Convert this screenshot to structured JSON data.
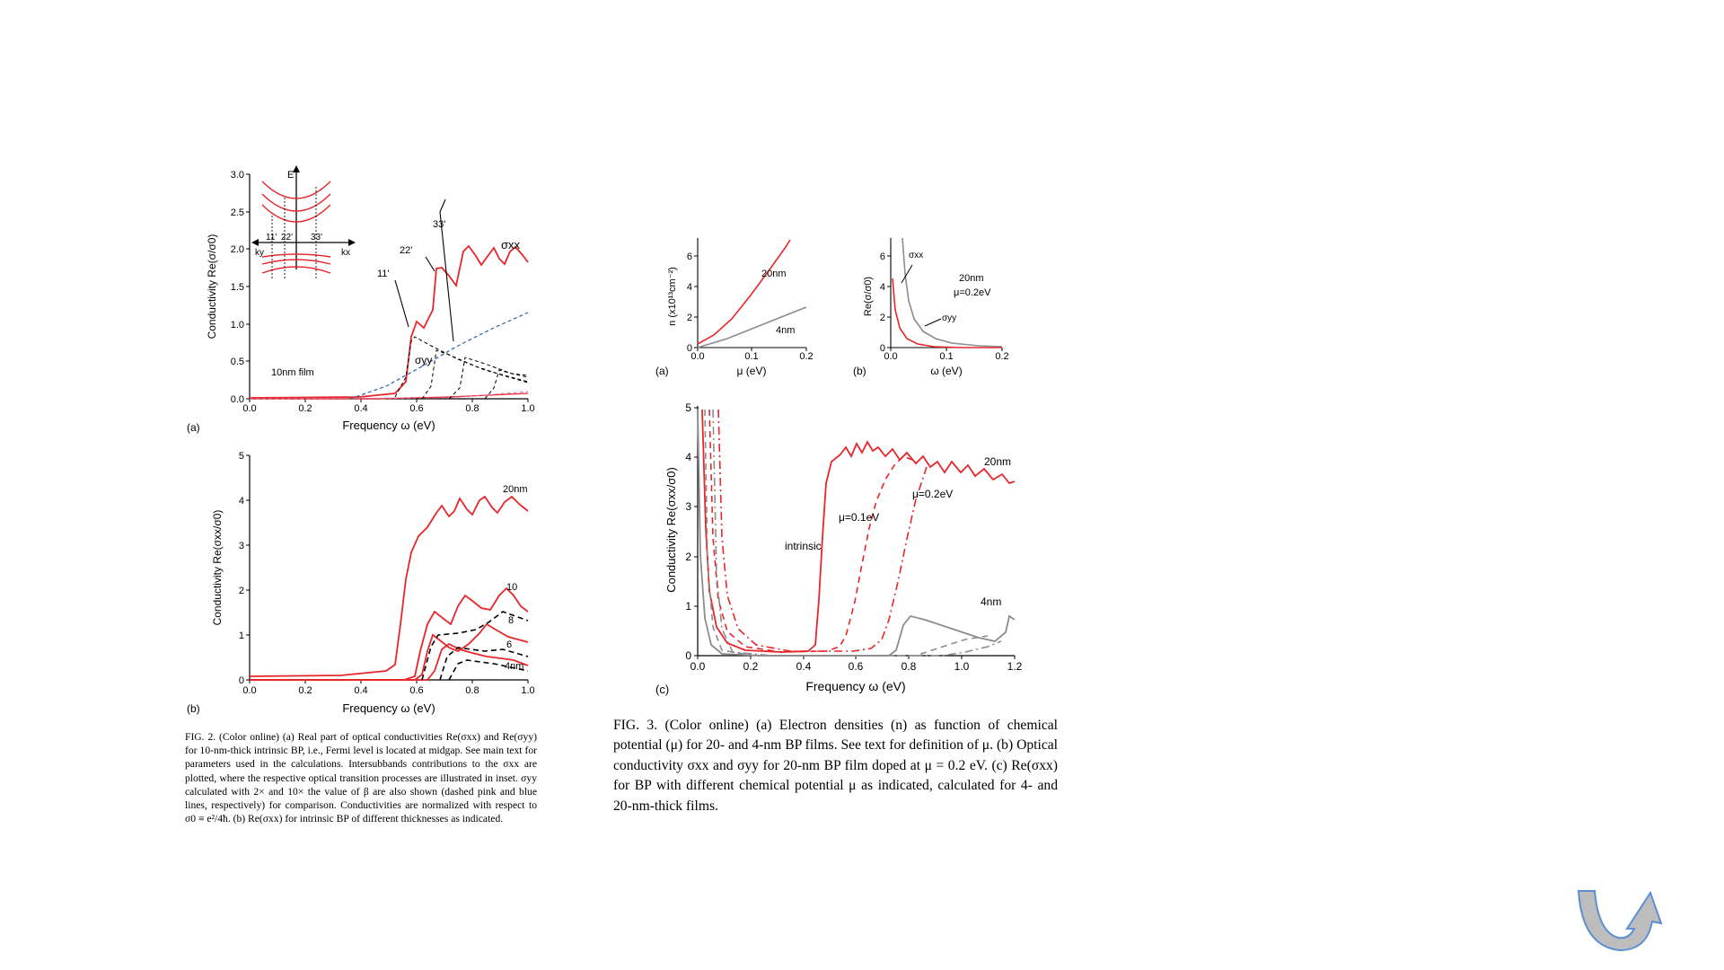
{
  "fig2": {
    "a": {
      "panel": "(a)",
      "ylabel": "Conductivity Re(σ/σ0)",
      "xlabel": "Frequency ω (eV)",
      "xticks": [
        "0.0",
        "0.2",
        "0.4",
        "0.6",
        "0.8",
        "1.0"
      ],
      "yticks": [
        "0.0",
        "0.5",
        "1.0",
        "1.5",
        "2.0",
        "2.5",
        "3.0"
      ],
      "film_label": "10nm film",
      "sigma_xx": "σxx",
      "sigma_yy": "σyy",
      "transitions": [
        "11'",
        "22'",
        "33'"
      ],
      "inset": {
        "E": "E",
        "ky": "ky",
        "kx": "kx",
        "labels": [
          "11'",
          "22'",
          "33'"
        ]
      }
    },
    "b": {
      "panel": "(b)",
      "ylabel": "Conductivity Re(σxx/σ0)",
      "xlabel": "Frequency ω (eV)",
      "xticks": [
        "0.0",
        "0.2",
        "0.4",
        "0.6",
        "0.8",
        "1.0"
      ],
      "yticks": [
        "0",
        "1",
        "2",
        "3",
        "4",
        "5"
      ],
      "labels": [
        "20nm",
        "10",
        "8",
        "6",
        "4nm"
      ]
    },
    "caption": "FIG. 2. (Color online) (a) Real part of optical conductivities Re(σxx) and Re(σyy) for 10-nm-thick intrinsic BP, i.e., Fermi level is located at midgap. See main text for parameters used in the calculations. Intersubbands contributions to the σxx are plotted, where the respective optical transition processes are illustrated in inset. σyy calculated with 2× and 10× the value of β are also shown (dashed pink and blue lines, respectively) for comparison. Conductivities are normalized with respect to σ0 ≡ e²/4ħ. (b) Re(σxx) for intrinsic BP of different thicknesses as indicated."
  },
  "fig3": {
    "a": {
      "panel": "(a)",
      "ylabel": "n (x10¹³cm⁻²)",
      "xlabel": "μ (eV)",
      "xticks": [
        "0.0",
        "0.1",
        "0.2"
      ],
      "yticks": [
        "0",
        "2",
        "4",
        "6"
      ],
      "labels": [
        "20nm",
        "4nm"
      ]
    },
    "b": {
      "panel": "(b)",
      "ylabel": "Re(σ/σ0)",
      "xlabel": "ω (eV)",
      "xticks": [
        "0.0",
        "0.1",
        "0.2"
      ],
      "yticks": [
        "0",
        "2",
        "4",
        "6"
      ],
      "labels": [
        "σxx",
        "σyy",
        "20nm",
        "μ=0.2eV"
      ]
    },
    "c": {
      "panel": "(c)",
      "ylabel": "Conductivity Re(σxx/σ0)",
      "xlabel": "Frequency ω (eV)",
      "xticks": [
        "0.0",
        "0.2",
        "0.4",
        "0.6",
        "0.8",
        "1.0",
        "1.2"
      ],
      "yticks": [
        "0",
        "1",
        "2",
        "3",
        "4",
        "5"
      ],
      "labels": [
        "20nm",
        "μ=0.2eV",
        "μ=0.1eV",
        "intrinsic",
        "4nm"
      ]
    },
    "caption": "FIG. 3. (Color online) (a) Electron densities (n) as function of chemical potential (μ) for 20- and 4-nm BP films. See text for definition of μ. (b) Optical conductivity σxx and σyy for 20-nm BP film doped at μ = 0.2 eV. (c) Re(σxx) for BP with different chemical potential μ as indicated, calculated for 4- and 20-nm-thick films."
  },
  "colors": {
    "red": "#e8262a",
    "gray": "#8c8c8c",
    "blue": "#2b5fae",
    "black": "#000000",
    "corner": "#5b8fd6"
  },
  "corner_icon": "u-turn-arrow-icon"
}
